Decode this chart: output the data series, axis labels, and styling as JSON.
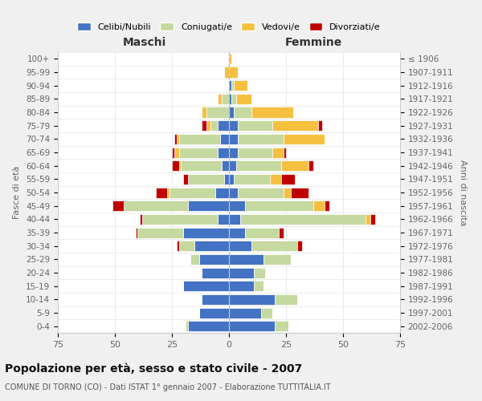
{
  "age_groups": [
    "0-4",
    "5-9",
    "10-14",
    "15-19",
    "20-24",
    "25-29",
    "30-34",
    "35-39",
    "40-44",
    "45-49",
    "50-54",
    "55-59",
    "60-64",
    "65-69",
    "70-74",
    "75-79",
    "80-84",
    "85-89",
    "90-94",
    "95-99",
    "100+"
  ],
  "birth_years": [
    "2002-2006",
    "1997-2001",
    "1992-1996",
    "1987-1991",
    "1982-1986",
    "1977-1981",
    "1972-1976",
    "1967-1971",
    "1962-1966",
    "1957-1961",
    "1952-1956",
    "1947-1951",
    "1942-1946",
    "1937-1941",
    "1932-1936",
    "1927-1931",
    "1922-1926",
    "1917-1921",
    "1912-1916",
    "1907-1911",
    "≤ 1906"
  ],
  "males": {
    "celibi": [
      18,
      13,
      12,
      20,
      12,
      13,
      15,
      20,
      5,
      18,
      6,
      2,
      3,
      5,
      4,
      5,
      0,
      0,
      0,
      0,
      0
    ],
    "coniugati": [
      1,
      0,
      0,
      0,
      0,
      4,
      7,
      20,
      33,
      28,
      20,
      16,
      18,
      17,
      18,
      3,
      10,
      3,
      0,
      0,
      0
    ],
    "vedovi": [
      0,
      0,
      0,
      0,
      0,
      0,
      0,
      0,
      0,
      0,
      1,
      0,
      1,
      2,
      1,
      2,
      2,
      2,
      0,
      2,
      0
    ],
    "divorziati": [
      0,
      0,
      0,
      0,
      0,
      0,
      1,
      1,
      1,
      5,
      5,
      2,
      3,
      1,
      1,
      2,
      0,
      0,
      0,
      0,
      0
    ]
  },
  "females": {
    "nubili": [
      20,
      14,
      20,
      11,
      11,
      15,
      10,
      7,
      5,
      7,
      4,
      2,
      3,
      4,
      4,
      4,
      2,
      1,
      1,
      0,
      0
    ],
    "coniugate": [
      6,
      5,
      10,
      4,
      5,
      12,
      20,
      15,
      55,
      30,
      20,
      16,
      20,
      15,
      20,
      15,
      8,
      2,
      1,
      0,
      0
    ],
    "vedove": [
      0,
      0,
      0,
      0,
      0,
      0,
      0,
      0,
      2,
      5,
      3,
      5,
      12,
      5,
      18,
      20,
      18,
      7,
      6,
      4,
      1
    ],
    "divorziate": [
      0,
      0,
      0,
      0,
      0,
      0,
      2,
      2,
      2,
      2,
      8,
      6,
      2,
      1,
      0,
      2,
      0,
      0,
      0,
      0,
      0
    ]
  },
  "colors": {
    "celibi_nubili": "#4472c4",
    "coniugati_e": "#c5d9a0",
    "vedovi_e": "#f5c040",
    "divorziati_e": "#c00000"
  },
  "xlim": 75,
  "title": "Popolazione per età, sesso e stato civile - 2007",
  "subtitle": "COMUNE DI TORNO (CO) - Dati ISTAT 1° gennaio 2007 - Elaborazione TUTTITALIA.IT",
  "ylabel_left": "Fasce di età",
  "ylabel_right": "Anni di nascita",
  "xlabel_left": "Maschi",
  "xlabel_right": "Femmine",
  "bg_color": "#f0f0f0",
  "plot_bg_color": "#ffffff"
}
